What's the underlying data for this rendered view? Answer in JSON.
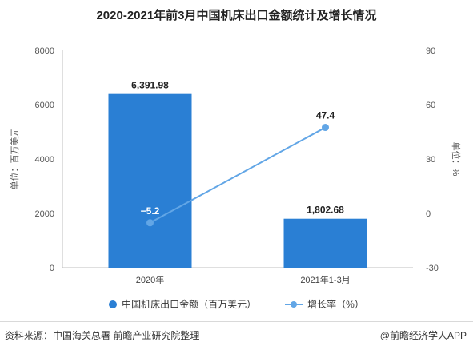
{
  "title": "2020-2021年前3月中国机床出口金额统计及增长情况",
  "footer": {
    "source": "资料来源：中国海关总署 前瞻产业研究院整理",
    "brand": "@前瞻经济学人APP"
  },
  "colors": {
    "bar": "#2a7fd4",
    "line": "#62a6e6"
  },
  "chart_data": {
    "type": "bar",
    "categories": [
      "2020年",
      "2021年1-3月"
    ],
    "series": [
      {
        "name": "中国机床出口金额（百万美元）",
        "type": "bar",
        "axis": "left",
        "values": [
          6391.98,
          1802.68
        ],
        "labels": [
          "6,391.98",
          "1,802.68"
        ]
      },
      {
        "name": "增长率（%）",
        "type": "line",
        "axis": "right",
        "values": [
          -5.2,
          47.4
        ],
        "labels": [
          "−5.2",
          "47.4"
        ]
      }
    ],
    "ylabel_left": "单位：百万美元",
    "ylabel_right": "单位：%",
    "ylim_left": [
      0,
      8000
    ],
    "ylim_right": [
      -30,
      90
    ],
    "yticks_left": [
      "0",
      "2000",
      "4000",
      "6000",
      "8000"
    ],
    "yticks_right": [
      "-30",
      "0",
      "30",
      "60",
      "90"
    ],
    "legend_position": "bottom",
    "grid": false
  }
}
